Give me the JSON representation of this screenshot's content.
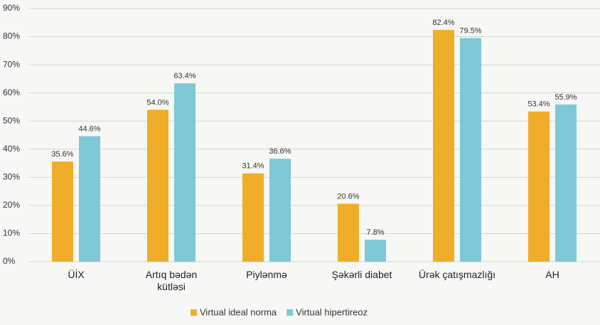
{
  "chart_data": {
    "type": "bar",
    "categories": [
      "ÜİX",
      "Artıq bədən kütləsi",
      "Piylənmə",
      "Şəkərli diabet",
      "Ürək çatışmazlığı",
      "AH"
    ],
    "series": [
      {
        "name": "Virtual ideal norma",
        "color": "#f0ad2a",
        "values": [
          35.6,
          54.0,
          31.4,
          20.6,
          82.4,
          53.4
        ],
        "value_labels": [
          "35.6%",
          "54.0%",
          "31.4%",
          "20.6%",
          "82.4%",
          "53.4%"
        ]
      },
      {
        "name": "Virtual hipertireoz",
        "color": "#7ec8d8",
        "values": [
          44.6,
          63.4,
          36.6,
          7.8,
          79.5,
          55.9
        ],
        "value_labels": [
          "44.6%",
          "63.4%",
          "36.6%",
          "7.8%",
          "79.5%",
          "55.9%"
        ]
      }
    ],
    "ylim": [
      0,
      90
    ],
    "yticks": [
      {
        "value": 0,
        "label": "0%"
      },
      {
        "value": 10,
        "label": "10%"
      },
      {
        "value": 20,
        "label": "20%"
      },
      {
        "value": 30,
        "label": "30%"
      },
      {
        "value": 40,
        "label": "40%"
      },
      {
        "value": 50,
        "label": "50%"
      },
      {
        "value": 60,
        "label": "60%"
      },
      {
        "value": 70,
        "label": "70%"
      },
      {
        "value": 80,
        "label": "80%"
      },
      {
        "value": 90,
        "label": "90%"
      }
    ],
    "grid": true,
    "legend": "bottom"
  }
}
